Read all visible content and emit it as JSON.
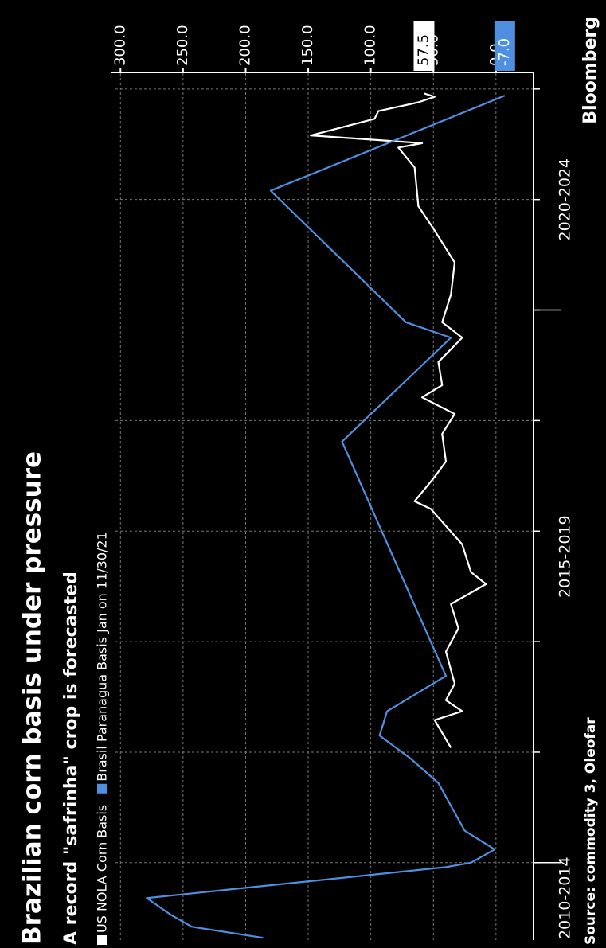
{
  "chart_data": {
    "type": "line",
    "title": "Brazilian corn basis under pressure",
    "subtitle": "A record \"safrinha\" crop is forecasted",
    "source": "Source: commodity 3, Oleofar",
    "brand": "Bloomberg",
    "xlim": [
      2014.3,
      2022.15
    ],
    "ylim": [
      -30,
      304
    ],
    "yticks": [
      {
        "value": 0,
        "label": "0.0"
      },
      {
        "value": 50,
        "label": "50.0"
      },
      {
        "value": 100,
        "label": "100.0"
      },
      {
        "value": 150,
        "label": "150.0"
      },
      {
        "value": 200,
        "label": "200.0"
      },
      {
        "value": 250,
        "label": "250.0"
      },
      {
        "value": 300,
        "label": "300.0"
      }
    ],
    "xgroups": [
      {
        "value": 2014.68,
        "label": "2010-2014"
      },
      {
        "value": 2017.77,
        "label": "2015-2019"
      },
      {
        "value": 2021.0,
        "label": "2020-2024"
      }
    ],
    "xgrid": [
      2015,
      2016,
      2017,
      2018,
      2019,
      2020,
      2021,
      2022
    ],
    "xdividers": [
      2015,
      2020
    ],
    "grid": true,
    "series": [
      {
        "name": "US NOLA Corn Basis",
        "color": "#ffffff",
        "last_label": "57.5",
        "x": [
          2016.04,
          2016.29,
          2016.37,
          2016.47,
          2016.62,
          2016.91,
          2017.12,
          2017.34,
          2017.52,
          2017.63,
          2017.88,
          2018.2,
          2018.27,
          2018.49,
          2018.63,
          2018.88,
          2019.06,
          2019.21,
          2019.32,
          2019.53,
          2019.75,
          2019.89,
          2020.14,
          2020.43,
          2020.72,
          2020.94,
          2021.29,
          2021.47,
          2021.51,
          2021.58,
          2021.73,
          2021.8,
          2021.88,
          2021.93,
          2021.96
        ],
        "values": [
          36,
          49,
          27,
          40,
          33,
          40,
          30,
          36,
          8,
          20,
          27,
          52,
          65,
          49,
          40,
          43,
          33,
          59,
          43,
          46,
          27,
          43,
          36,
          33,
          49,
          62,
          65,
          78,
          59,
          148,
          97,
          94,
          62,
          49,
          57.5
        ]
      },
      {
        "name": "Brasil Paranagua Basis Jan on 11/30/21",
        "color": "#4f8fe0",
        "last_label": "-7.0",
        "x": [
          2014.32,
          2014.42,
          2014.53,
          2014.68,
          2014.96,
          2015.0,
          2015.12,
          2015.29,
          2015.72,
          2015.94,
          2016.15,
          2016.37,
          2016.69,
          2018.81,
          2019.75,
          2019.89,
          2021.08,
          2021.94
        ],
        "values": [
          186,
          243,
          260,
          279,
          40,
          20,
          1,
          25,
          46,
          68,
          93,
          87,
          40,
          123,
          36,
          72,
          180,
          -7
        ]
      }
    ]
  }
}
